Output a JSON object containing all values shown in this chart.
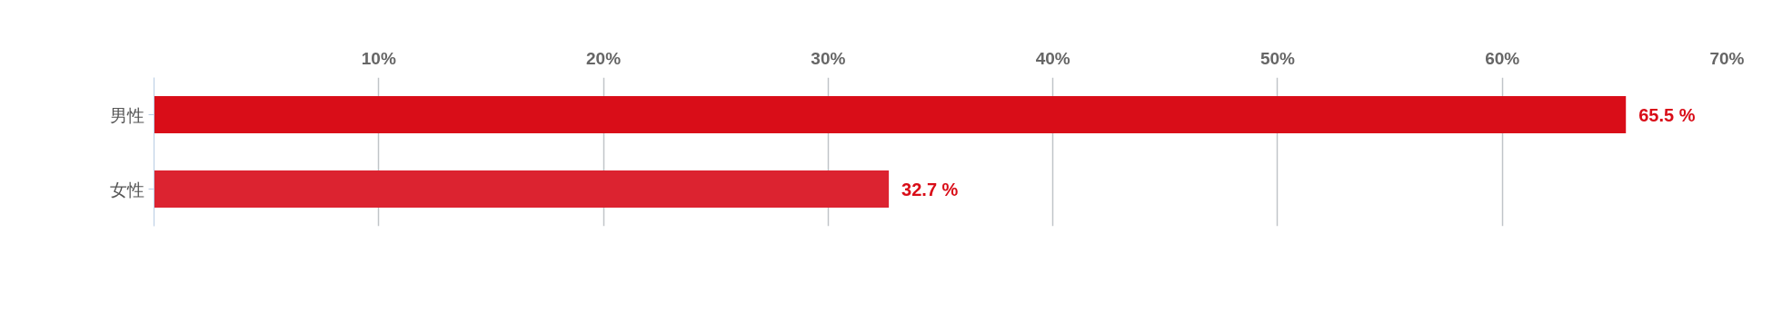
{
  "chart_data": {
    "type": "bar",
    "orientation": "horizontal",
    "categories": [
      "男性",
      "女性"
    ],
    "values": [
      65.5,
      32.7
    ],
    "colors": [
      "#d90d18",
      "#dc2330"
    ],
    "value_labels": [
      "65.5 %",
      "32.7 %"
    ],
    "xlim": [
      0,
      70
    ],
    "xticks": [
      {
        "value": 0,
        "label": null
      },
      {
        "value": 10,
        "label": "10%"
      },
      {
        "value": 20,
        "label": "20%"
      },
      {
        "value": 30,
        "label": "30%"
      },
      {
        "value": 40,
        "label": "40%"
      },
      {
        "value": 50,
        "label": "50%"
      },
      {
        "value": 60,
        "label": "60%"
      },
      {
        "value": 70,
        "label": "70%"
      }
    ],
    "grid": "x"
  }
}
